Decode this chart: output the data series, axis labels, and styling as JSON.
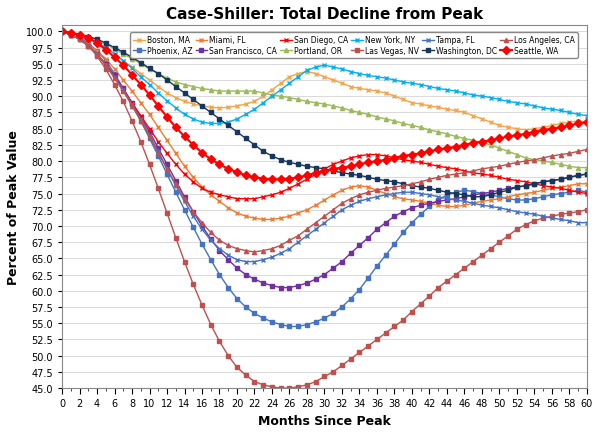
{
  "title": "Case-Shiller: Total Decline from Peak",
  "xlabel": "Months Since Peak",
  "ylabel": "Percent of Peak Value",
  "xlim": [
    0,
    60
  ],
  "ylim": [
    45.0,
    101.0
  ],
  "yticks": [
    45.0,
    47.5,
    50.0,
    52.5,
    55.0,
    57.5,
    60.0,
    62.5,
    65.0,
    67.5,
    70.0,
    72.5,
    75.0,
    77.5,
    80.0,
    82.5,
    85.0,
    87.5,
    90.0,
    92.5,
    95.0,
    97.5,
    100.0
  ],
  "xticks": [
    0,
    2,
    4,
    6,
    8,
    10,
    12,
    14,
    16,
    18,
    20,
    22,
    24,
    26,
    28,
    30,
    32,
    34,
    36,
    38,
    40,
    42,
    44,
    46,
    48,
    50,
    52,
    54,
    56,
    58,
    60
  ],
  "series": [
    {
      "name": "Boston, MA",
      "color": "#F4A44A",
      "marker": "x",
      "markersize": 3,
      "linewidth": 1.0,
      "values": [
        100,
        99.8,
        99.5,
        99.0,
        98.3,
        97.5,
        96.5,
        95.5,
        94.5,
        93.5,
        92.5,
        91.5,
        90.5,
        89.8,
        89.2,
        88.8,
        88.5,
        88.3,
        88.2,
        88.3,
        88.5,
        88.8,
        89.2,
        90.0,
        91.0,
        92.0,
        93.0,
        93.5,
        93.8,
        93.5,
        93.0,
        92.5,
        92.0,
        91.5,
        91.2,
        91.0,
        90.8,
        90.5,
        90.0,
        89.5,
        89.0,
        88.8,
        88.5,
        88.3,
        88.0,
        87.8,
        87.5,
        87.0,
        86.5,
        86.0,
        85.5,
        85.2,
        85.0,
        84.8,
        85.0,
        85.2,
        85.5,
        85.8,
        86.0,
        86.2,
        86.0
      ]
    },
    {
      "name": "Phoenix, AZ",
      "color": "#4472C4",
      "marker": "s",
      "markersize": 3,
      "linewidth": 1.0,
      "values": [
        100,
        99.5,
        99.0,
        98.2,
        97.0,
        95.5,
        93.5,
        91.2,
        88.8,
        86.2,
        83.5,
        80.8,
        78.0,
        75.2,
        72.5,
        69.8,
        67.2,
        64.8,
        62.5,
        60.5,
        58.8,
        57.5,
        56.5,
        55.8,
        55.2,
        54.8,
        54.5,
        54.5,
        54.8,
        55.2,
        55.8,
        56.5,
        57.5,
        58.8,
        60.2,
        62.0,
        63.8,
        65.5,
        67.2,
        69.0,
        70.5,
        71.8,
        73.0,
        74.0,
        74.8,
        75.2,
        75.5,
        75.3,
        75.0,
        74.8,
        74.5,
        74.2,
        74.0,
        74.0,
        74.2,
        74.5,
        74.8,
        75.0,
        75.2,
        75.5,
        75.2
      ]
    },
    {
      "name": "Miami, FL",
      "color": "#ED7D31",
      "marker": "x",
      "markersize": 3,
      "linewidth": 1.0,
      "values": [
        100,
        99.5,
        98.8,
        98.0,
        97.0,
        95.8,
        94.2,
        92.5,
        90.8,
        89.0,
        87.2,
        85.2,
        83.2,
        81.2,
        79.2,
        77.5,
        76.0,
        74.8,
        73.8,
        72.8,
        72.0,
        71.5,
        71.2,
        71.0,
        71.0,
        71.2,
        71.5,
        72.0,
        72.5,
        73.2,
        74.0,
        74.8,
        75.5,
        76.0,
        76.2,
        76.0,
        75.5,
        75.0,
        74.5,
        74.2,
        74.0,
        73.8,
        73.5,
        73.2,
        73.0,
        73.0,
        73.2,
        73.5,
        73.8,
        74.0,
        74.2,
        74.5,
        74.8,
        75.0,
        75.2,
        75.5,
        75.8,
        76.0,
        76.2,
        76.5,
        76.5
      ]
    },
    {
      "name": "San Francisco, CA",
      "color": "#7030A0",
      "marker": "s",
      "markersize": 3,
      "linewidth": 1.0,
      "values": [
        100,
        99.5,
        98.8,
        97.8,
        96.5,
        95.0,
        93.2,
        91.2,
        89.0,
        86.8,
        84.5,
        82.0,
        79.5,
        77.0,
        74.5,
        72.2,
        70.0,
        68.0,
        66.2,
        64.8,
        63.5,
        62.5,
        61.8,
        61.2,
        60.8,
        60.5,
        60.5,
        60.8,
        61.2,
        61.8,
        62.5,
        63.5,
        64.5,
        65.8,
        67.0,
        68.2,
        69.5,
        70.5,
        71.5,
        72.2,
        72.8,
        73.2,
        73.5,
        73.8,
        74.0,
        74.2,
        74.5,
        74.8,
        75.0,
        75.2,
        75.5,
        75.8,
        76.0,
        76.2,
        76.5,
        76.8,
        77.0,
        77.2,
        77.5,
        77.8,
        78.0
      ]
    },
    {
      "name": "San Diego, CA",
      "color": "#FF0000",
      "marker": "x",
      "markersize": 3,
      "linewidth": 1.0,
      "values": [
        100,
        99.5,
        98.8,
        97.8,
        96.5,
        94.8,
        93.0,
        91.0,
        89.0,
        87.0,
        85.0,
        83.0,
        81.2,
        79.5,
        78.0,
        76.8,
        75.8,
        75.2,
        74.8,
        74.5,
        74.2,
        74.2,
        74.2,
        74.5,
        74.8,
        75.2,
        75.8,
        76.5,
        77.2,
        78.0,
        78.8,
        79.5,
        80.0,
        80.5,
        80.8,
        81.0,
        81.0,
        80.8,
        80.5,
        80.2,
        80.0,
        79.8,
        79.5,
        79.2,
        79.0,
        78.8,
        78.5,
        78.2,
        78.0,
        77.8,
        77.5,
        77.2,
        77.0,
        76.8,
        76.5,
        76.2,
        76.0,
        75.8,
        75.5,
        75.2,
        75.0
      ]
    },
    {
      "name": "Portland, OR",
      "color": "#9BBB59",
      "marker": "^",
      "markersize": 3,
      "linewidth": 1.0,
      "values": [
        100,
        99.8,
        99.5,
        99.0,
        98.5,
        98.0,
        97.3,
        96.5,
        95.8,
        95.0,
        94.2,
        93.5,
        92.8,
        92.2,
        91.8,
        91.5,
        91.2,
        91.0,
        90.8,
        90.8,
        90.8,
        90.8,
        90.8,
        90.5,
        90.2,
        90.0,
        89.8,
        89.5,
        89.2,
        89.0,
        88.8,
        88.5,
        88.2,
        87.8,
        87.5,
        87.2,
        86.8,
        86.5,
        86.2,
        85.8,
        85.5,
        85.2,
        84.8,
        84.5,
        84.2,
        83.8,
        83.5,
        83.2,
        82.8,
        82.5,
        82.0,
        81.5,
        81.0,
        80.5,
        80.2,
        80.0,
        79.8,
        79.5,
        79.2,
        79.0,
        79.0
      ]
    },
    {
      "name": "New York, NY",
      "color": "#00B0F0",
      "marker": "x",
      "markersize": 3,
      "linewidth": 1.0,
      "values": [
        100,
        99.8,
        99.5,
        99.0,
        98.3,
        97.5,
        96.5,
        95.5,
        94.3,
        93.0,
        91.8,
        90.5,
        89.3,
        88.2,
        87.2,
        86.5,
        86.0,
        85.8,
        85.8,
        86.0,
        86.5,
        87.2,
        88.0,
        89.0,
        90.0,
        91.0,
        92.0,
        93.0,
        94.0,
        94.5,
        94.8,
        94.5,
        94.2,
        93.8,
        93.5,
        93.2,
        93.0,
        92.8,
        92.5,
        92.2,
        92.0,
        91.8,
        91.5,
        91.2,
        91.0,
        90.8,
        90.5,
        90.2,
        90.0,
        89.8,
        89.5,
        89.2,
        89.0,
        88.8,
        88.5,
        88.2,
        88.0,
        87.8,
        87.5,
        87.2,
        87.0
      ]
    },
    {
      "name": "Las Vegas, NV",
      "color": "#C0504D",
      "marker": "s",
      "markersize": 3,
      "linewidth": 1.0,
      "values": [
        100,
        99.5,
        98.8,
        97.8,
        96.2,
        94.2,
        91.8,
        89.2,
        86.2,
        83.0,
        79.5,
        75.8,
        72.0,
        68.2,
        64.5,
        61.0,
        57.8,
        54.8,
        52.2,
        50.0,
        48.2,
        47.0,
        46.0,
        45.5,
        45.2,
        45.0,
        45.0,
        45.2,
        45.5,
        46.0,
        46.8,
        47.5,
        48.5,
        49.5,
        50.5,
        51.5,
        52.5,
        53.5,
        54.5,
        55.5,
        56.8,
        58.0,
        59.2,
        60.5,
        61.5,
        62.5,
        63.5,
        64.5,
        65.5,
        66.5,
        67.5,
        68.5,
        69.5,
        70.2,
        70.8,
        71.2,
        71.5,
        71.8,
        72.0,
        72.2,
        72.5
      ]
    },
    {
      "name": "Tampa, FL",
      "color": "#4472C4",
      "marker": "x",
      "markersize": 3,
      "linewidth": 1.0,
      "values": [
        100,
        99.5,
        98.8,
        97.8,
        96.5,
        94.8,
        93.0,
        91.0,
        88.8,
        86.5,
        84.0,
        81.5,
        78.8,
        76.2,
        73.8,
        71.5,
        69.5,
        67.8,
        66.5,
        65.5,
        64.8,
        64.5,
        64.5,
        64.8,
        65.2,
        65.8,
        66.5,
        67.5,
        68.5,
        69.5,
        70.5,
        71.5,
        72.5,
        73.2,
        73.8,
        74.2,
        74.5,
        74.8,
        75.0,
        75.2,
        75.2,
        75.0,
        74.8,
        74.5,
        74.2,
        74.0,
        73.8,
        73.5,
        73.2,
        73.0,
        72.8,
        72.5,
        72.2,
        72.0,
        71.8,
        71.5,
        71.2,
        71.0,
        70.8,
        70.5,
        70.5
      ]
    },
    {
      "name": "Washington, DC",
      "color": "#17375E",
      "marker": "s",
      "markersize": 3,
      "linewidth": 1.0,
      "values": [
        100,
        99.8,
        99.5,
        99.2,
        98.8,
        98.2,
        97.5,
        96.8,
        96.0,
        95.2,
        94.3,
        93.5,
        92.5,
        91.5,
        90.5,
        89.5,
        88.5,
        87.5,
        86.5,
        85.5,
        84.5,
        83.5,
        82.5,
        81.5,
        80.8,
        80.2,
        79.8,
        79.5,
        79.2,
        79.0,
        78.8,
        78.5,
        78.2,
        78.0,
        77.8,
        77.5,
        77.2,
        77.0,
        76.8,
        76.5,
        76.2,
        76.0,
        75.8,
        75.5,
        75.2,
        75.0,
        74.8,
        74.5,
        74.5,
        74.8,
        75.2,
        75.5,
        76.0,
        76.2,
        76.5,
        76.8,
        77.0,
        77.2,
        77.5,
        77.8,
        78.0
      ]
    },
    {
      "name": "Los Angeles, CA",
      "color": "#C0504D",
      "marker": "^",
      "markersize": 3,
      "linewidth": 1.0,
      "values": [
        100,
        99.5,
        98.8,
        97.8,
        96.5,
        94.8,
        92.8,
        90.8,
        88.5,
        86.2,
        83.8,
        81.2,
        78.8,
        76.5,
        74.2,
        72.2,
        70.5,
        69.0,
        67.8,
        67.0,
        66.5,
        66.2,
        66.0,
        66.2,
        66.5,
        67.0,
        67.8,
        68.5,
        69.5,
        70.5,
        71.5,
        72.5,
        73.5,
        74.2,
        74.8,
        75.2,
        75.5,
        75.8,
        76.0,
        76.2,
        76.5,
        76.8,
        77.2,
        77.5,
        77.8,
        78.0,
        78.2,
        78.5,
        78.8,
        79.0,
        79.2,
        79.5,
        79.8,
        80.0,
        80.2,
        80.5,
        80.8,
        81.0,
        81.2,
        81.5,
        81.8
      ]
    },
    {
      "name": "Seattle, WA",
      "color": "#FF0000",
      "marker": "D",
      "markersize": 4,
      "linewidth": 1.5,
      "values": [
        100,
        99.8,
        99.5,
        99.0,
        98.2,
        97.2,
        96.0,
        94.8,
        93.3,
        91.8,
        90.2,
        88.5,
        86.8,
        85.2,
        83.8,
        82.5,
        81.3,
        80.3,
        79.5,
        78.8,
        78.3,
        77.8,
        77.5,
        77.3,
        77.2,
        77.2,
        77.3,
        77.5,
        77.8,
        78.2,
        78.5,
        78.8,
        79.0,
        79.2,
        79.5,
        79.8,
        80.0,
        80.2,
        80.5,
        80.8,
        81.0,
        81.2,
        81.5,
        81.8,
        82.0,
        82.2,
        82.5,
        82.8,
        83.0,
        83.2,
        83.5,
        83.8,
        84.0,
        84.2,
        84.5,
        84.8,
        85.0,
        85.2,
        85.5,
        85.8,
        86.0
      ]
    }
  ]
}
